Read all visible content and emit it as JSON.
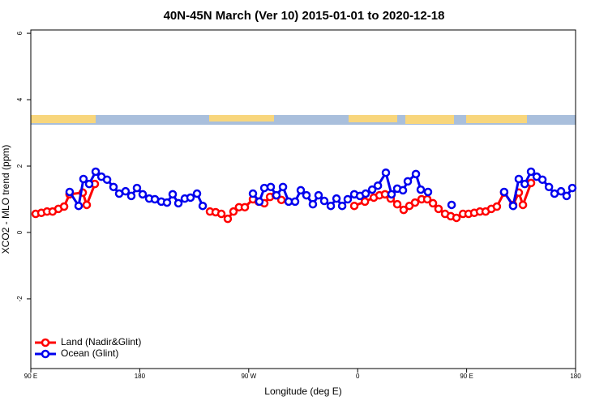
{
  "chart_data": {
    "type": "line",
    "title": "40N-45N March (Ver 10)   2015-01-01 to 2020-12-18",
    "x_label": "Longitude (deg E)",
    "y_label": "XCO2 - MLO trend (ppm)",
    "xlim": [
      90,
      540
    ],
    "xticks": [
      {
        "value": 90,
        "label": "90 E"
      },
      {
        "value": 180,
        "label": "180"
      },
      {
        "value": 270,
        "label": "90 W"
      },
      {
        "value": 360,
        "label": "0"
      },
      {
        "value": 450,
        "label": "90 E"
      },
      {
        "value": 540,
        "label": "180"
      }
    ],
    "ylim": [
      -4.1,
      6.1
    ],
    "yticks": [
      -2,
      0,
      2,
      4,
      6
    ],
    "legend": "bottom-left",
    "series": [
      {
        "name": "Land (Nadir&Glint)",
        "color": "#ff0000",
        "x": [
          94,
          98.7,
          103.4,
          108,
          112.8,
          117.5,
          122,
          132.9,
          136.2,
          142.9,
          null,
          238,
          242.7,
          247.4,
          252.7,
          257.4,
          262,
          266.8,
          273.5,
          278.2,
          282.9,
          287.6,
          292.3,
          297,
          null,
          357.2,
          366,
          373.3,
          378,
          382.6,
          387.3,
          392.7,
          398,
          402.7,
          407.4,
          412.8,
          417.5,
          422.2,
          426.8,
          432.2,
          436.9,
          441.6,
          447,
          451.6,
          456.3,
          461,
          465.7,
          470.4,
          475,
          481,
          488.4,
          493.1,
          496.5,
          503.2
        ],
        "values": [
          0.56,
          0.59,
          0.63,
          0.63,
          0.71,
          0.78,
          1.15,
          1.2,
          0.83,
          1.46,
          null,
          0.63,
          0.61,
          0.56,
          0.41,
          0.63,
          0.76,
          0.76,
          1.0,
          0.93,
          0.88,
          1.07,
          1.12,
          0.98,
          null,
          0.8,
          0.93,
          1.05,
          1.12,
          1.15,
          1.02,
          0.85,
          0.68,
          0.8,
          0.9,
          1.0,
          1.0,
          0.88,
          0.71,
          0.56,
          0.49,
          0.44,
          0.56,
          0.56,
          0.59,
          0.63,
          0.63,
          0.71,
          0.78,
          1.2,
          0.83,
          1.2,
          0.83,
          1.49
        ]
      },
      {
        "name": "Ocean (Glint)",
        "color": "#0000ee",
        "x": [
          122.1,
          129.5,
          133.5,
          138.2,
          143.6,
          148.3,
          153,
          158.3,
          163,
          168.3,
          173,
          177.7,
          182.4,
          187.8,
          192.5,
          197.8,
          202.5,
          207.2,
          211.9,
          217.2,
          221.9,
          227.3,
          232,
          null,
          273.5,
          278.8,
          282.9,
          288.2,
          292.9,
          298.3,
          303,
          308.3,
          313,
          317.7,
          323,
          327.7,
          332.4,
          337.8,
          342.5,
          347.2,
          351.8,
          357.2,
          361.9,
          366.6,
          372,
          376.7,
          383.3,
          388,
          392.7,
          397.4,
          401.4,
          408.1,
          412.1,
          418.1,
          null,
          437.6,
          null,
          481,
          488.4,
          493.1,
          498,
          503.2,
          507.9,
          512.6,
          518,
          522.6,
          528,
          532.6,
          537.3
        ],
        "values": [
          1.22,
          0.8,
          1.61,
          1.46,
          1.83,
          1.68,
          1.59,
          1.37,
          1.17,
          1.24,
          1.1,
          1.34,
          1.15,
          1.02,
          1.0,
          0.93,
          0.9,
          1.15,
          0.88,
          1.02,
          1.05,
          1.17,
          0.8,
          null,
          1.17,
          0.93,
          1.34,
          1.37,
          1.12,
          1.37,
          0.93,
          0.93,
          1.27,
          1.12,
          0.85,
          1.12,
          0.95,
          0.8,
          1.02,
          0.8,
          1.0,
          1.15,
          1.1,
          1.17,
          1.29,
          1.41,
          1.8,
          1.15,
          1.32,
          1.27,
          1.54,
          1.76,
          1.29,
          1.22,
          null,
          0.83,
          null,
          1.22,
          0.8,
          1.61,
          1.46,
          1.83,
          1.68,
          1.59,
          1.37,
          1.17,
          1.24,
          1.1,
          1.34
        ]
      }
    ]
  }
}
